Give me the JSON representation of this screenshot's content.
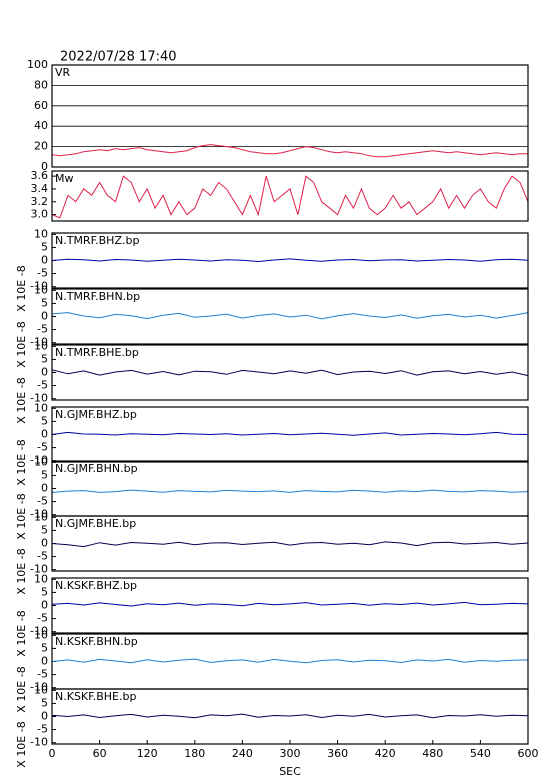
{
  "chart_data": [
    {
      "type": "line",
      "title": "2022/07/28 17:40",
      "label": "VR",
      "xlim": [
        0,
        600
      ],
      "ylim": [
        0,
        100
      ],
      "yticks": [
        0,
        20,
        40,
        60,
        80,
        100
      ],
      "grid": true,
      "x": [
        0,
        10,
        20,
        30,
        40,
        50,
        60,
        70,
        80,
        90,
        100,
        110,
        120,
        130,
        140,
        150,
        160,
        170,
        180,
        190,
        200,
        210,
        220,
        230,
        240,
        250,
        260,
        270,
        280,
        290,
        300,
        310,
        320,
        330,
        340,
        350,
        360,
        370,
        380,
        390,
        400,
        410,
        420,
        430,
        440,
        450,
        460,
        470,
        480,
        490,
        500,
        510,
        520,
        530,
        540,
        550,
        560,
        570,
        580,
        590,
        600
      ],
      "series": [
        {
          "color": "#e0204a",
          "values": [
            12,
            11,
            12,
            13,
            15,
            16,
            17,
            16,
            18,
            17,
            18,
            19,
            17,
            16,
            15,
            14,
            15,
            16,
            19,
            21,
            22,
            21,
            20,
            19,
            17,
            15,
            14,
            13,
            13,
            14,
            16,
            18,
            20,
            19,
            17,
            15,
            14,
            15,
            14,
            13,
            11,
            10,
            10,
            11,
            12,
            13,
            14,
            15,
            16,
            15,
            14,
            15,
            14,
            13,
            12,
            13,
            14,
            13,
            12,
            13,
            13
          ]
        }
      ]
    },
    {
      "type": "line",
      "label": "Mw",
      "xlim": [
        0,
        600
      ],
      "ylim": [
        2.9,
        3.68
      ],
      "yticks": [
        {
          "value": 3,
          "label": "3.0"
        },
        3.2,
        3.4,
        3.6
      ],
      "grid": false,
      "x": [
        0,
        10,
        20,
        30,
        40,
        50,
        60,
        70,
        80,
        90,
        100,
        110,
        120,
        130,
        140,
        150,
        160,
        170,
        180,
        190,
        200,
        210,
        220,
        230,
        240,
        250,
        260,
        270,
        280,
        290,
        300,
        310,
        320,
        330,
        340,
        350,
        360,
        370,
        380,
        390,
        400,
        410,
        420,
        430,
        440,
        450,
        460,
        470,
        480,
        490,
        500,
        510,
        520,
        530,
        540,
        550,
        560,
        570,
        580,
        590,
        600
      ],
      "series": [
        {
          "color": "#e0204a",
          "values": [
            3.0,
            2.95,
            3.3,
            3.2,
            3.4,
            3.3,
            3.5,
            3.3,
            3.2,
            3.6,
            3.5,
            3.2,
            3.4,
            3.1,
            3.3,
            3.0,
            3.2,
            3.0,
            3.1,
            3.4,
            3.3,
            3.5,
            3.4,
            3.2,
            3.0,
            3.3,
            3.0,
            3.6,
            3.2,
            3.3,
            3.4,
            3.0,
            3.6,
            3.5,
            3.2,
            3.1,
            3.0,
            3.3,
            3.1,
            3.4,
            3.1,
            3.0,
            3.1,
            3.3,
            3.1,
            3.2,
            3.0,
            3.1,
            3.2,
            3.4,
            3.1,
            3.3,
            3.1,
            3.3,
            3.4,
            3.2,
            3.1,
            3.4,
            3.6,
            3.5,
            3.2
          ]
        }
      ]
    },
    {
      "type": "line",
      "label": "N.TMRF.BHZ.bp",
      "ylabel": "X 10E -8",
      "xlim": [
        0,
        600
      ],
      "ylim": [
        -10.5,
        10.5
      ],
      "yticks": [
        -10,
        -5,
        0,
        5,
        10
      ],
      "x": [
        0,
        20,
        40,
        60,
        80,
        100,
        120,
        140,
        160,
        180,
        200,
        220,
        240,
        260,
        280,
        300,
        320,
        340,
        360,
        380,
        400,
        420,
        440,
        460,
        480,
        500,
        520,
        540,
        560,
        580,
        600
      ],
      "series": [
        {
          "color": "#0000a0",
          "values": [
            0,
            0.5,
            0.3,
            -0.2,
            0.4,
            0.2,
            -0.3,
            0.1,
            0.5,
            0.2,
            -0.2,
            0.3,
            0.1,
            -0.4,
            0.2,
            0.6,
            0.1,
            -0.3,
            0.2,
            0.4,
            -0.1,
            0.2,
            0.3,
            -0.2,
            0.1,
            0.4,
            0.2,
            -0.3,
            0.3,
            0.5,
            0.1
          ]
        }
      ]
    },
    {
      "type": "line",
      "label": "N.TMRF.BHN.bp",
      "ylabel": "X 10E -8",
      "xlim": [
        0,
        600
      ],
      "ylim": [
        -10.5,
        10.5
      ],
      "yticks": [
        -10,
        -5,
        0,
        5,
        10
      ],
      "x": [
        0,
        20,
        40,
        60,
        80,
        100,
        120,
        140,
        160,
        180,
        200,
        220,
        240,
        260,
        280,
        300,
        320,
        340,
        360,
        380,
        400,
        420,
        440,
        460,
        480,
        500,
        520,
        540,
        560,
        580,
        600
      ],
      "series": [
        {
          "color": "#1e7fd0",
          "values": [
            1,
            1.5,
            0.2,
            -0.5,
            0.8,
            0.3,
            -0.8,
            0.5,
            1.2,
            -0.3,
            0.2,
            0.9,
            -0.6,
            0.4,
            1,
            -0.2,
            0.5,
            -0.9,
            0.3,
            1.1,
            0.2,
            -0.4,
            0.6,
            -0.7,
            0.3,
            0.8,
            -0.2,
            0.5,
            -0.6,
            0.4,
            1.5
          ]
        }
      ]
    },
    {
      "type": "line",
      "label": "N.TMRF.BHE.bp",
      "ylabel": "X 10E -8",
      "xlim": [
        0,
        600
      ],
      "ylim": [
        -10.5,
        10.5
      ],
      "yticks": [
        -10,
        -5,
        0,
        5,
        10
      ],
      "x": [
        0,
        20,
        40,
        60,
        80,
        100,
        120,
        140,
        160,
        180,
        200,
        220,
        240,
        260,
        280,
        300,
        320,
        340,
        360,
        380,
        400,
        420,
        440,
        460,
        480,
        500,
        520,
        540,
        560,
        580,
        600
      ],
      "series": [
        {
          "color": "#000050",
          "values": [
            1,
            -0.5,
            0.6,
            -1,
            0.2,
            0.8,
            -0.6,
            0.4,
            -0.9,
            0.5,
            0.3,
            -0.7,
            0.8,
            0.2,
            -0.5,
            0.6,
            -0.3,
            0.9,
            -0.8,
            0.2,
            0.5,
            -0.4,
            0.7,
            -1,
            0.3,
            0.6,
            -0.5,
            0.4,
            -0.7,
            0.2,
            -1.2
          ]
        }
      ]
    },
    {
      "type": "line",
      "label": "N.GJMF.BHZ.bp",
      "ylabel": "X 10E -8",
      "xlim": [
        0,
        600
      ],
      "ylim": [
        -10.5,
        10.5
      ],
      "yticks": [
        -10,
        -5,
        0,
        5,
        10
      ],
      "x": [
        0,
        20,
        40,
        60,
        80,
        100,
        120,
        140,
        160,
        180,
        200,
        220,
        240,
        260,
        280,
        300,
        320,
        340,
        360,
        380,
        400,
        420,
        440,
        460,
        480,
        500,
        520,
        540,
        560,
        580,
        600
      ],
      "series": [
        {
          "color": "#0000a0",
          "values": [
            0,
            0.8,
            0.2,
            0.1,
            -0.2,
            0.3,
            0.1,
            -0.1,
            0.4,
            0.2,
            0,
            0.3,
            -0.2,
            0.1,
            0.4,
            -0.1,
            0.2,
            0.5,
            0.1,
            -0.3,
            0.2,
            0.6,
            -0.2,
            0.1,
            0.4,
            0.2,
            -0.1,
            0.3,
            0.8,
            0.1,
            0
          ]
        }
      ]
    },
    {
      "type": "line",
      "label": "N.GJMF.BHN.bp",
      "ylabel": "X 10E -8",
      "xlim": [
        0,
        600
      ],
      "ylim": [
        -10.5,
        10.5
      ],
      "yticks": [
        -10,
        -5,
        0,
        5,
        10
      ],
      "x": [
        0,
        20,
        40,
        60,
        80,
        100,
        120,
        140,
        160,
        180,
        200,
        220,
        240,
        260,
        280,
        300,
        320,
        340,
        360,
        380,
        400,
        420,
        440,
        460,
        480,
        500,
        520,
        540,
        560,
        580,
        600
      ],
      "series": [
        {
          "color": "#1e7fd0",
          "values": [
            -1.5,
            -1,
            -0.8,
            -1.5,
            -1.2,
            -0.6,
            -1,
            -1.4,
            -0.8,
            -1.1,
            -1.3,
            -0.7,
            -1,
            -1.2,
            -0.9,
            -1.5,
            -0.8,
            -1.1,
            -1.3,
            -0.7,
            -1,
            -1.4,
            -0.9,
            -1.2,
            -0.6,
            -1.1,
            -1.3,
            -0.8,
            -1,
            -1.4,
            -1.2
          ]
        }
      ]
    },
    {
      "type": "line",
      "label": "N.GJMF.BHE.bp",
      "ylabel": "X 10E -8",
      "xlim": [
        0,
        600
      ],
      "ylim": [
        -10.5,
        10.5
      ],
      "yticks": [
        -10,
        -5,
        0,
        5,
        10
      ],
      "x": [
        0,
        20,
        40,
        60,
        80,
        100,
        120,
        140,
        160,
        180,
        200,
        220,
        240,
        260,
        280,
        300,
        320,
        340,
        360,
        380,
        400,
        420,
        440,
        460,
        480,
        500,
        520,
        540,
        560,
        580,
        600
      ],
      "series": [
        {
          "color": "#000050",
          "values": [
            0,
            -0.5,
            -1.2,
            0.3,
            -0.6,
            0.4,
            0.1,
            -0.3,
            0.5,
            -0.5,
            0.2,
            0.3,
            -0.4,
            0.1,
            0.5,
            -0.6,
            0.2,
            0.4,
            -0.3,
            0.1,
            -0.5,
            0.6,
            0.2,
            -0.8,
            0.3,
            0.5,
            -0.2,
            0.1,
            0.4,
            -0.3,
            0.2
          ]
        }
      ]
    },
    {
      "type": "line",
      "label": "N.KSKF.BHZ.bp",
      "ylabel": "X 10E -8",
      "xlim": [
        0,
        600
      ],
      "ylim": [
        -10.5,
        10.5
      ],
      "yticks": [
        -10,
        -5,
        0,
        5,
        10
      ],
      "x": [
        0,
        20,
        40,
        60,
        80,
        100,
        120,
        140,
        160,
        180,
        200,
        220,
        240,
        260,
        280,
        300,
        320,
        340,
        360,
        380,
        400,
        420,
        440,
        460,
        480,
        500,
        520,
        540,
        560,
        580,
        600
      ],
      "series": [
        {
          "color": "#0000a0",
          "values": [
            0.5,
            0.8,
            0.2,
            1,
            0.4,
            -0.2,
            0.7,
            0.3,
            0.9,
            0.1,
            0.6,
            0.4,
            -0.1,
            0.8,
            0.3,
            0.6,
            1.1,
            0.2,
            0.5,
            0.8,
            0.1,
            0.7,
            0.4,
            0.9,
            0.2,
            0.6,
            1.2,
            0.3,
            0.5,
            0.8,
            0.6
          ]
        }
      ]
    },
    {
      "type": "line",
      "label": "N.KSKF.BHN.bp",
      "ylabel": "X 10E -8",
      "xlim": [
        0,
        600
      ],
      "ylim": [
        -10.5,
        10.5
      ],
      "yticks": [
        -10,
        -5,
        0,
        5,
        10
      ],
      "x": [
        0,
        20,
        40,
        60,
        80,
        100,
        120,
        140,
        160,
        180,
        200,
        220,
        240,
        260,
        280,
        300,
        320,
        340,
        360,
        380,
        400,
        420,
        440,
        460,
        480,
        500,
        520,
        540,
        560,
        580,
        600
      ],
      "series": [
        {
          "color": "#1e7fd0",
          "values": [
            0,
            0.6,
            -0.3,
            0.8,
            0.2,
            -0.5,
            0.7,
            -0.2,
            0.5,
            0.9,
            -0.4,
            0.3,
            0.6,
            -0.3,
            0.8,
            0.1,
            -0.5,
            0.4,
            0.7,
            -0.2,
            0.5,
            0.3,
            -0.4,
            0.6,
            0.2,
            0.8,
            -0.3,
            0.4,
            0.1,
            0.5,
            0.6
          ]
        }
      ]
    },
    {
      "type": "line",
      "label": "N.KSKF.BHE.bp",
      "ylabel": "X 10E -8",
      "xlabel": "SEC",
      "xlim": [
        0,
        600
      ],
      "ylim": [
        -10.5,
        10.5
      ],
      "yticks": [
        -10,
        -5,
        0,
        5,
        10
      ],
      "xticks": [
        0,
        60,
        120,
        180,
        240,
        300,
        360,
        420,
        480,
        540,
        600
      ],
      "x": [
        0,
        20,
        40,
        60,
        80,
        100,
        120,
        140,
        160,
        180,
        200,
        220,
        240,
        260,
        280,
        300,
        320,
        340,
        360,
        380,
        400,
        420,
        440,
        460,
        480,
        500,
        520,
        540,
        560,
        580,
        600
      ],
      "series": [
        {
          "color": "#000050",
          "values": [
            0.5,
            0,
            0.6,
            -0.4,
            0.3,
            0.8,
            -0.2,
            0.5,
            0.1,
            -0.5,
            0.6,
            0.3,
            0.9,
            -0.3,
            0.4,
            0.2,
            0.7,
            -0.4,
            0.5,
            0.1,
            0.8,
            -0.2,
            0.3,
            0.6,
            -0.5,
            0.4,
            0.2,
            0.7,
            0.1,
            0.5,
            0.3
          ]
        }
      ]
    }
  ]
}
